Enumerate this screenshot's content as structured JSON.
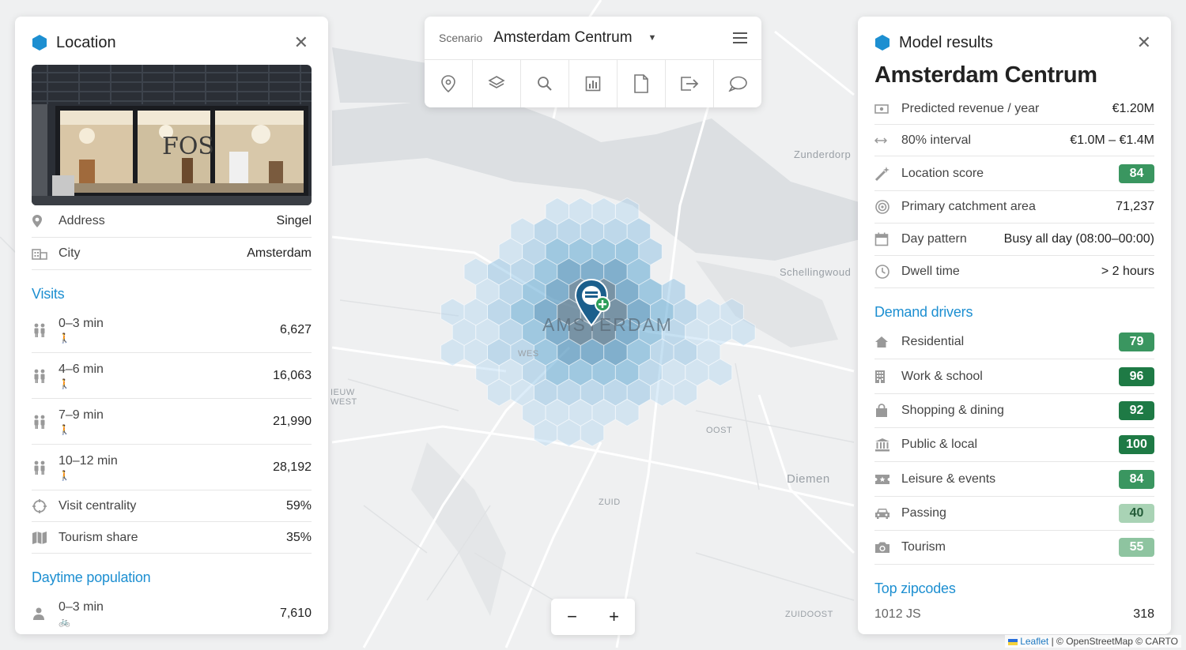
{
  "map": {
    "city_label": "AMSTERDAM",
    "places": [
      "Zunderdorp",
      "Schellingwoud",
      "OOST",
      "Diemen",
      "ZUID",
      "ZUIDOOST",
      "IEUW\nWEST",
      "WES"
    ]
  },
  "colors": {
    "accent": "#1d8fd1",
    "badge_dark": "#1e7a45",
    "badge_mid": "#3a9660",
    "badge_light": "#8ec4a0",
    "badge_pale": "#a9d3b5"
  },
  "left": {
    "title": "Location",
    "address_label": "Address",
    "address_value": "Singel",
    "city_label": "City",
    "city_value": "Amsterdam",
    "visits_title": "Visits",
    "visits": [
      {
        "range": "0–3 min",
        "value": "6,627"
      },
      {
        "range": "4–6 min",
        "value": "16,063"
      },
      {
        "range": "7–9 min",
        "value": "21,990"
      },
      {
        "range": "10–12 min",
        "value": "28,192"
      }
    ],
    "centrality_label": "Visit centrality",
    "centrality_value": "59%",
    "tourism_label": "Tourism share",
    "tourism_value": "35%",
    "daytime_title": "Daytime population",
    "daytime": [
      {
        "range": "0–3 min",
        "value": "7,610"
      }
    ]
  },
  "toolbar": {
    "scenario_label": "Scenario",
    "scenario_value": "Amsterdam Centrum",
    "tools": [
      "pin-icon",
      "layers-icon",
      "search-icon",
      "chart-icon",
      "document-icon",
      "export-icon",
      "comment-icon"
    ]
  },
  "right": {
    "title": "Model results",
    "location_name": "Amsterdam Centrum",
    "metrics": [
      {
        "label": "Predicted revenue / year",
        "value": "€1.20M"
      },
      {
        "label": "80% interval",
        "value": "€1.0M – €1.4M"
      },
      {
        "label": "Location score",
        "badge": "84"
      },
      {
        "label": "Primary catchment area",
        "value": "71,237"
      },
      {
        "label": "Day pattern",
        "value": "Busy all day (08:00–00:00)"
      },
      {
        "label": "Dwell time",
        "value": "> 2 hours"
      }
    ],
    "drivers_title": "Demand drivers",
    "drivers": [
      {
        "label": "Residential",
        "badge": "79"
      },
      {
        "label": "Work & school",
        "badge": "96"
      },
      {
        "label": "Shopping & dining",
        "badge": "92"
      },
      {
        "label": "Public & local",
        "badge": "100"
      },
      {
        "label": "Leisure & events",
        "badge": "84"
      },
      {
        "label": "Passing",
        "badge": "40"
      },
      {
        "label": "Tourism",
        "badge": "55"
      }
    ],
    "zip_title": "Top zipcodes",
    "zipcodes": [
      {
        "code": "1012 JS",
        "value": "318"
      }
    ]
  },
  "zoom": {
    "out": "−",
    "in": "+"
  },
  "attribution": {
    "leaflet": "Leaflet",
    "rest": " | © OpenStreetMap © CARTO"
  }
}
